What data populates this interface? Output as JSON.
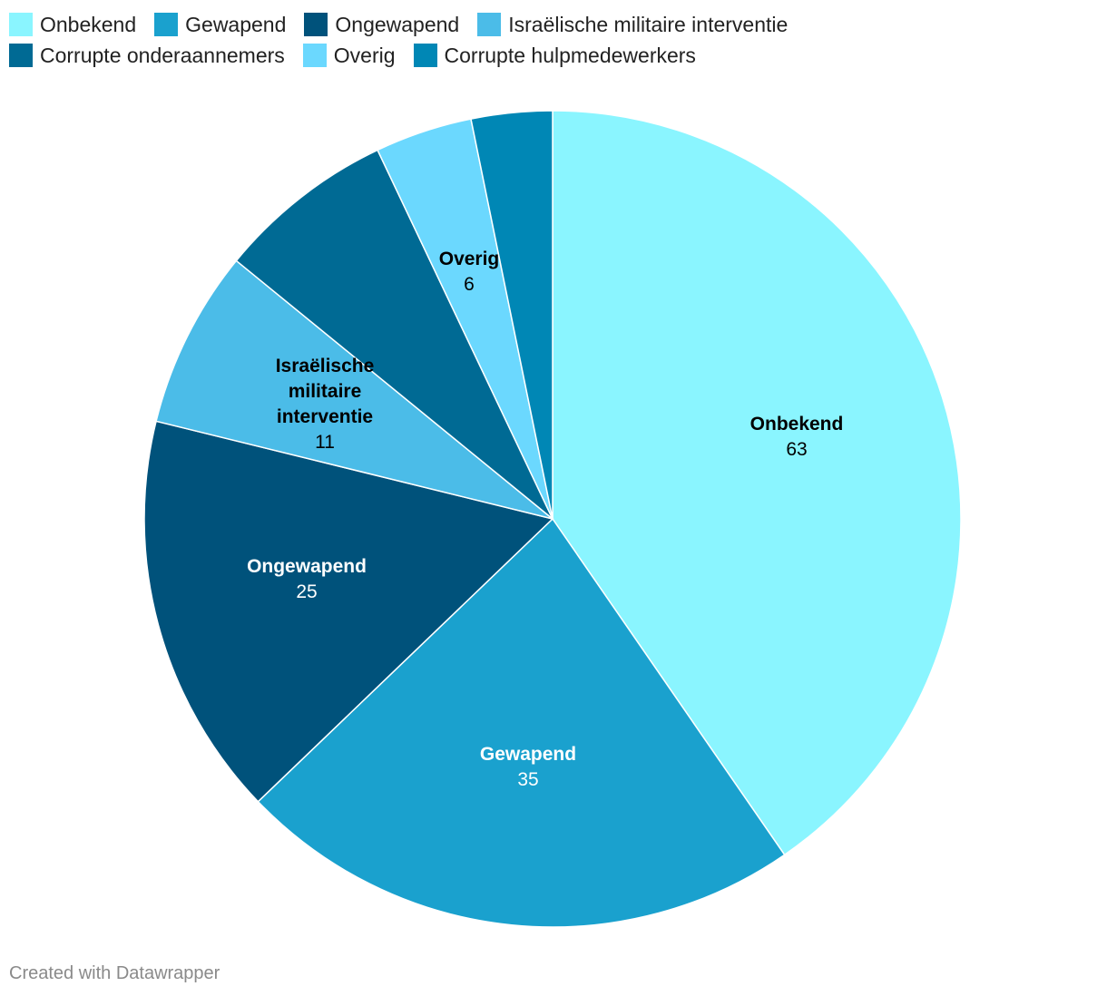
{
  "chart_data": {
    "type": "pie",
    "title": "",
    "legend_position": "top",
    "slices": [
      {
        "name": "Onbekend",
        "value": 63,
        "color": "#8af5ff",
        "label_color": "#000000",
        "show_label": true
      },
      {
        "name": "Gewapend",
        "value": 35,
        "color": "#1aa1ce",
        "label_color": "#ffffff",
        "show_label": true
      },
      {
        "name": "Ongewapend",
        "value": 25,
        "color": "#00527b",
        "label_color": "#ffffff",
        "show_label": true
      },
      {
        "name": "Israëlische militaire interventie",
        "value": 11,
        "color": "#4bbce8",
        "label_color": "#000000",
        "show_label": true
      },
      {
        "name": "Corrupte onderaannemers",
        "value": 11,
        "color": "#006a94",
        "label_color": "#ffffff",
        "show_label": false
      },
      {
        "name": "Overig",
        "value": 6,
        "color": "#6bd8fe",
        "label_color": "#000000",
        "show_label": true
      },
      {
        "name": "Corrupte hulpmedewerkers",
        "value": 5,
        "color": "#0087b5",
        "label_color": "#ffffff",
        "show_label": false
      }
    ]
  },
  "footer": {
    "credit": "Created with Datawrapper"
  }
}
